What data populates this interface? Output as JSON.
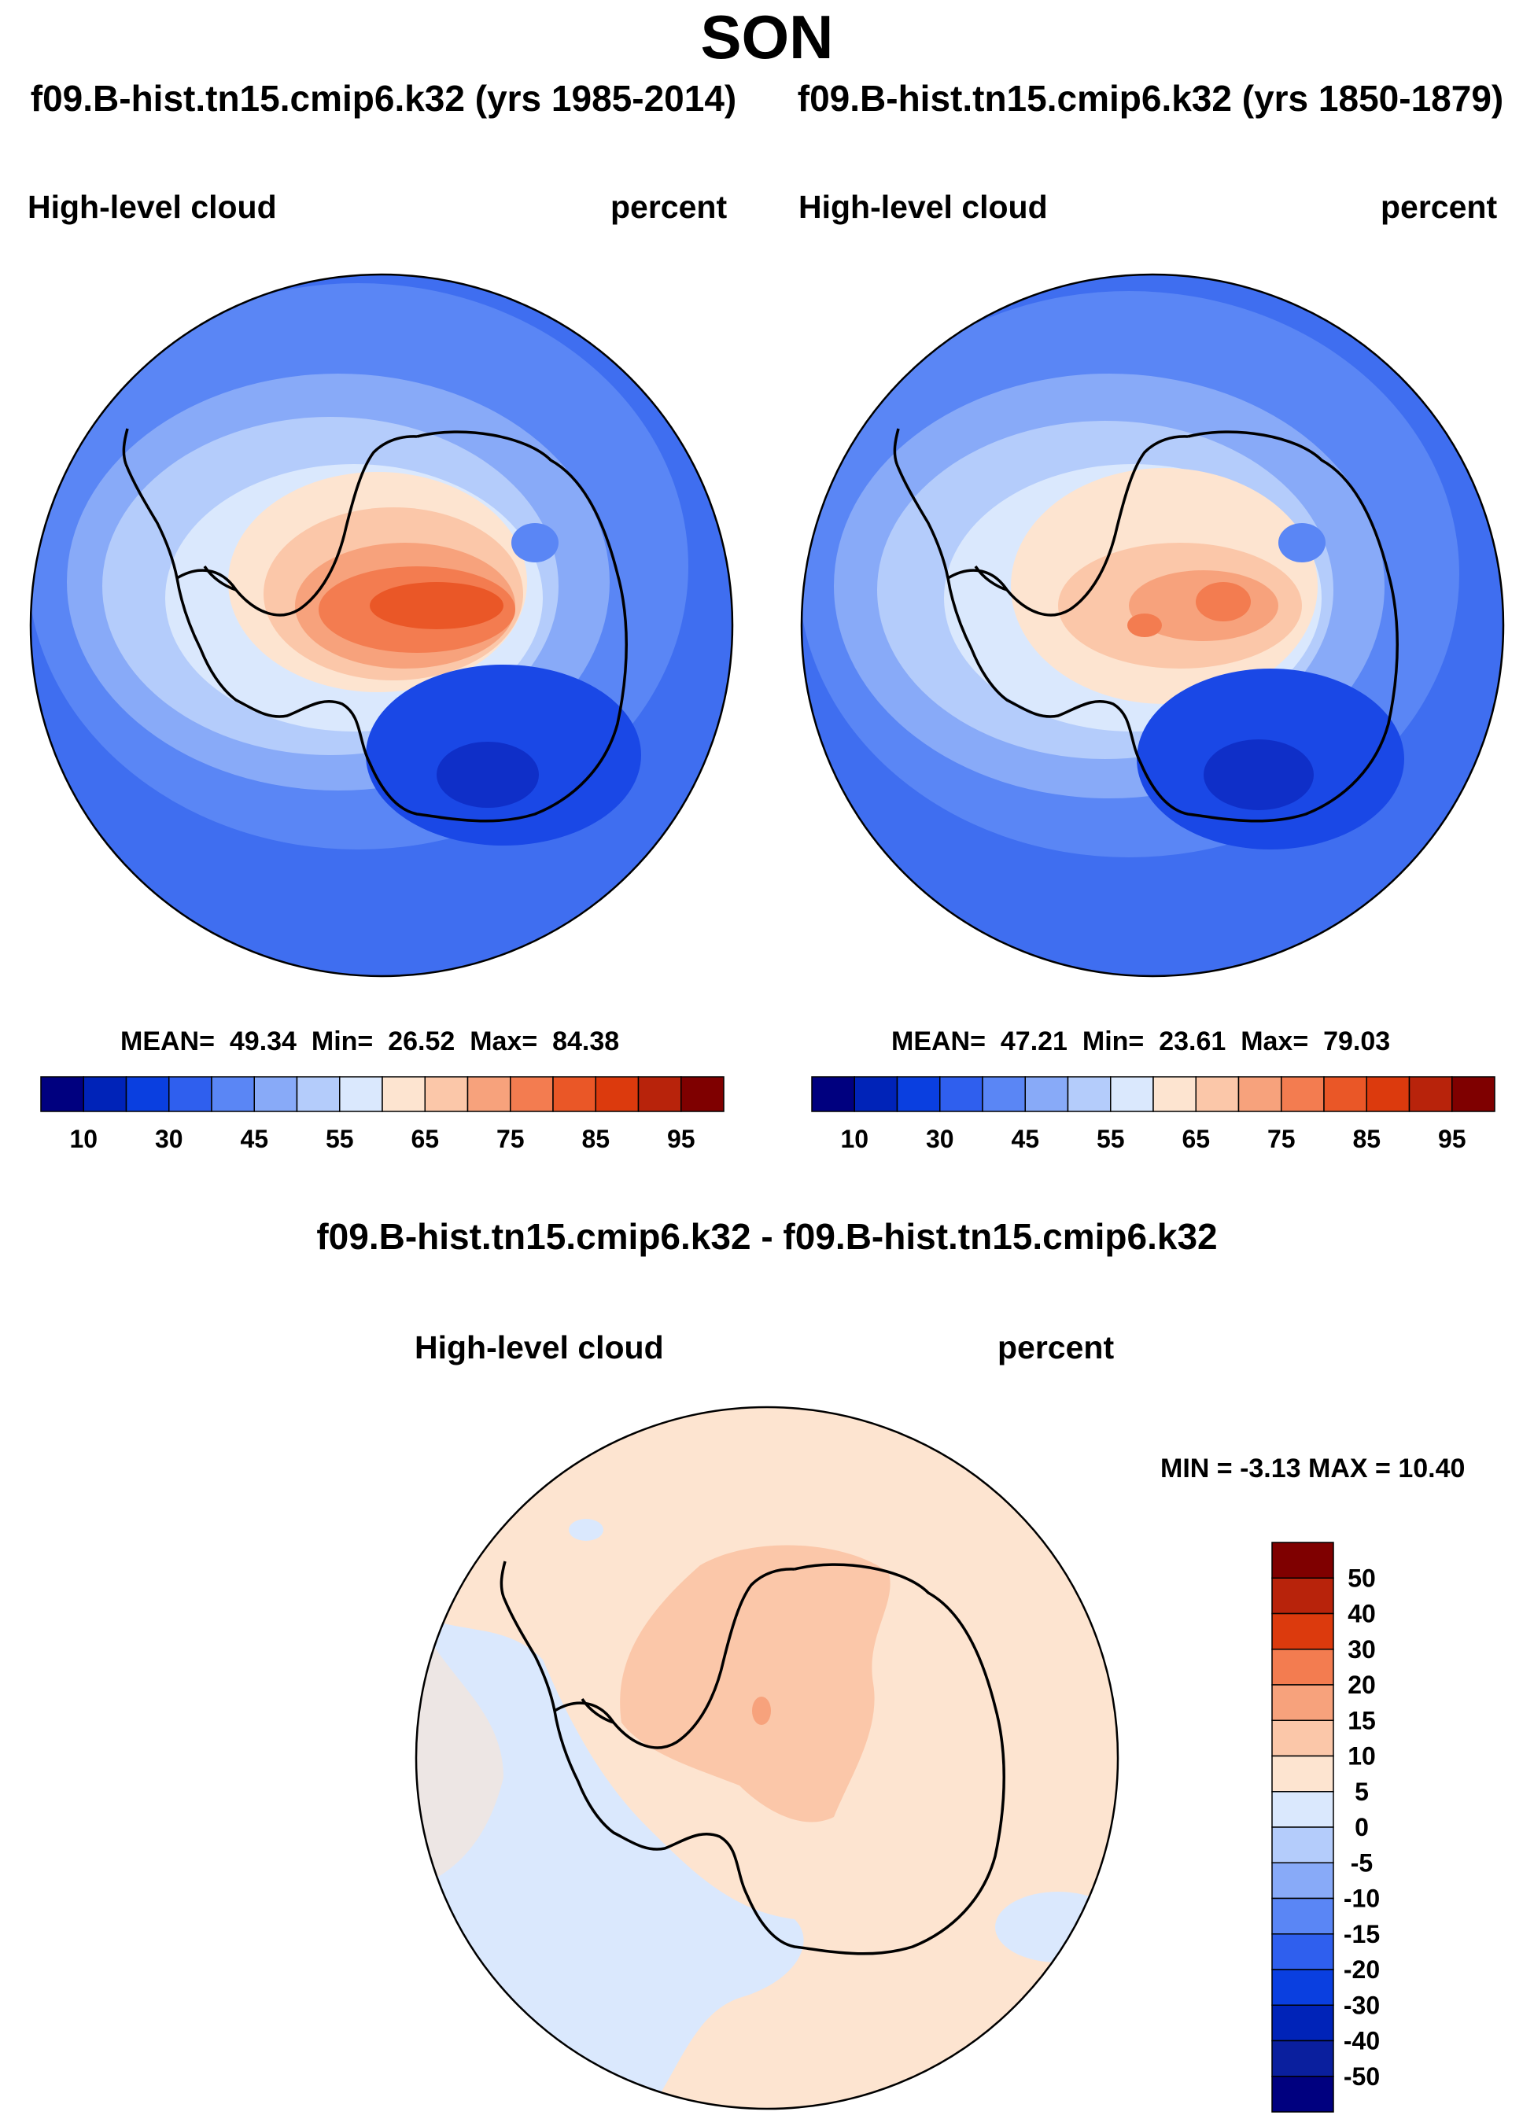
{
  "title": "SON",
  "panels": [
    {
      "case_title": "f09.B-hist.tn15.cmip6.k32 (yrs 1985-2014)",
      "variable": "High-level cloud",
      "units": "percent",
      "mean_label": "MEAN=",
      "mean": "49.34",
      "min_label": "Min=",
      "min": "26.52",
      "max_label": "Max=",
      "max": "84.38"
    },
    {
      "case_title": "f09.B-hist.tn15.cmip6.k32 (yrs 1850-1879)",
      "variable": "High-level cloud",
      "units": "percent",
      "mean_label": "MEAN=",
      "mean": "47.21",
      "min_label": "Min=",
      "min": "23.61",
      "max_label": "Max=",
      "max": "79.03"
    }
  ],
  "field_colorbar": {
    "tick_labels": [
      "10",
      "30",
      "45",
      "55",
      "65",
      "75",
      "85",
      "95"
    ],
    "colors": [
      "#00007f",
      "#0023b8",
      "#0a3fe0",
      "#2f5fee",
      "#5a86f5",
      "#88aaf8",
      "#b4ccfb",
      "#dae8fd",
      "#fde4d0",
      "#fbc7a9",
      "#f7a27c",
      "#f37c50",
      "#ea5727",
      "#dc3a0d",
      "#b8230b",
      "#7f0000"
    ]
  },
  "difference": {
    "title": "f09.B-hist.tn15.cmip6.k32 - f09.B-hist.tn15.cmip6.k32",
    "variable": "High-level cloud",
    "units": "percent",
    "min_label": "MIN =",
    "min": "-3.13",
    "max_label": "MAX =",
    "max": "10.40"
  },
  "diff_colorbar": {
    "tick_labels": [
      "50",
      "40",
      "30",
      "20",
      "15",
      "10",
      "5",
      "0",
      "-5",
      "-10",
      "-15",
      "-20",
      "-30",
      "-40",
      "-50"
    ],
    "colors_top_to_bottom": [
      "#7f0000",
      "#b8230b",
      "#dc3a0d",
      "#f37c50",
      "#f7a27c",
      "#fbc7a9",
      "#fde4d0",
      "#dae8fd",
      "#b4ccfb",
      "#88aaf8",
      "#5a86f5",
      "#2f5fee",
      "#0a3fe0",
      "#0023b8",
      "#0a1f9e",
      "#00007f"
    ]
  },
  "map_colors": {
    "ocean_low": "#3f6ef0",
    "ocean_mid": "#5a86f5",
    "ring_light": "#88aaf8",
    "ring_pale": "#b4ccfb",
    "ring_paler": "#dae8fd",
    "warm1": "#fde4d0",
    "warm2": "#fbc7a9",
    "warm3": "#f7a27c",
    "warm4": "#f37c50",
    "warm5": "#ea5727",
    "deep_blue": "#1a48e6",
    "deeper_blue": "#0f2fc8"
  }
}
